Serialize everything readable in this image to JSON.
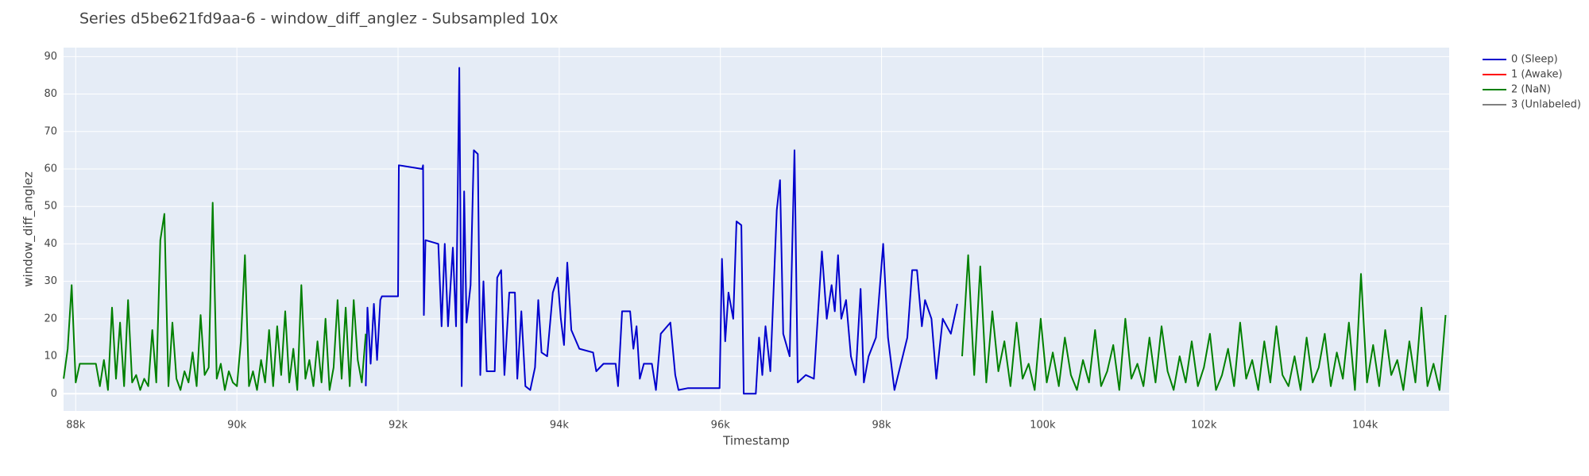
{
  "chart_data": {
    "type": "line",
    "title": "Series d5be621fd9aa-6 - window_diff_anglez - Subsampled 10x",
    "x_label": "Timestamp",
    "y_label": "window_diff_anglez",
    "xlim": [
      87849,
      105044
    ],
    "ylim": [
      -4.6,
      92.4
    ],
    "xticks": [
      {
        "value": 88000,
        "label": "88k"
      },
      {
        "value": 90000,
        "label": "90k"
      },
      {
        "value": 92000,
        "label": "92k"
      },
      {
        "value": 94000,
        "label": "94k"
      },
      {
        "value": 96000,
        "label": "96k"
      },
      {
        "value": 98000,
        "label": "98k"
      },
      {
        "value": 100000,
        "label": "100k"
      },
      {
        "value": 102000,
        "label": "102k"
      },
      {
        "value": 104000,
        "label": "104k"
      }
    ],
    "yticks": [
      0,
      10,
      20,
      30,
      40,
      50,
      60,
      70,
      80,
      90
    ],
    "grid": true,
    "legend": "right",
    "series": [
      {
        "name": "0 (Sleep)",
        "color": "#0000cd",
        "x": [
          91600,
          91620,
          91660,
          91700,
          91740,
          91780,
          91800,
          92000,
          92010,
          92300,
          92310,
          92320,
          92340,
          92500,
          92540,
          92580,
          92620,
          92680,
          92720,
          92760,
          92790,
          92820,
          92850,
          92900,
          92940,
          92990,
          93020,
          93060,
          93100,
          93200,
          93230,
          93280,
          93320,
          93380,
          93450,
          93480,
          93530,
          93580,
          93640,
          93700,
          93740,
          93780,
          93850,
          93920,
          93980,
          94020,
          94060,
          94100,
          94150,
          94250,
          94420,
          94460,
          94550,
          94700,
          94730,
          94780,
          94880,
          94920,
          94960,
          95000,
          95050,
          95150,
          95200,
          95260,
          95380,
          95440,
          95480,
          95600,
          95800,
          95990,
          96020,
          96060,
          96100,
          96160,
          96200,
          96260,
          96290,
          96440,
          96480,
          96520,
          96560,
          96620,
          96700,
          96740,
          96780,
          96860,
          96920,
          96960,
          97060,
          97160,
          97260,
          97320,
          97380,
          97420,
          97460,
          97500,
          97560,
          97620,
          97680,
          97740,
          97780,
          97840,
          97930,
          98020,
          98080,
          98160,
          98320,
          98380,
          98440,
          98500,
          98540,
          98620,
          98680,
          98760,
          98860,
          98940
        ],
        "values": [
          2,
          23,
          8,
          24,
          9,
          25,
          26,
          26,
          61,
          60,
          61,
          21,
          41,
          40,
          18,
          40,
          18,
          39,
          18,
          87,
          2,
          54,
          19,
          29,
          65,
          64,
          5,
          30,
          6,
          6,
          31,
          33,
          5,
          27,
          27,
          4,
          22,
          2,
          1,
          7,
          25,
          11,
          10,
          27,
          31,
          20,
          13,
          35,
          17,
          12,
          11,
          6,
          8,
          8,
          2,
          22,
          22,
          12,
          18,
          4,
          8,
          8,
          1,
          16,
          19,
          5,
          1,
          1.5,
          1.5,
          1.5,
          36,
          14,
          27,
          20,
          46,
          45,
          0,
          0,
          15,
          5,
          18,
          6,
          49,
          57,
          16,
          10,
          65,
          3,
          5,
          4,
          38,
          20,
          29,
          22,
          37,
          20,
          25,
          10,
          5,
          28,
          3,
          10,
          15,
          40,
          15,
          1,
          15,
          33,
          33,
          18,
          25,
          20,
          4,
          20,
          16,
          24
        ]
      },
      {
        "name": "1 (Awake)",
        "color": "#ff0000",
        "x": [],
        "values": []
      },
      {
        "name": "2 (NaN)",
        "color": "#008000",
        "x": [
          87850,
          87900,
          87950,
          88000,
          88050,
          88100,
          88150,
          88200,
          88250,
          88300,
          88350,
          88400,
          88450,
          88500,
          88550,
          88600,
          88650,
          88700,
          88750,
          88800,
          88850,
          88900,
          88950,
          89000,
          89050,
          89100,
          89150,
          89200,
          89250,
          89300,
          89350,
          89400,
          89450,
          89500,
          89550,
          89600,
          89650,
          89700,
          89750,
          89800,
          89850,
          89900,
          89950,
          90000,
          90050,
          90100,
          90150,
          90200,
          90250,
          90300,
          90350,
          90400,
          90450,
          90500,
          90550,
          90600,
          90650,
          90700,
          90750,
          90800,
          90850,
          90900,
          90950,
          91000,
          91050,
          91100,
          91150,
          91200,
          91250,
          91300,
          91350,
          91400,
          91450,
          91500,
          91550,
          91600,
          95300,
          99000,
          99075,
          99150,
          99225,
          99300,
          99375,
          99450,
          99525,
          99600,
          99675,
          99750,
          99825,
          99900,
          99975,
          100050,
          100125,
          100200,
          100275,
          100350,
          100425,
          100500,
          100575,
          100650,
          100725,
          100800,
          100875,
          100950,
          101025,
          101100,
          101175,
          101250,
          101325,
          101400,
          101475,
          101550,
          101625,
          101700,
          101775,
          101850,
          101925,
          102000,
          102075,
          102150,
          102225,
          102300,
          102375,
          102450,
          102525,
          102600,
          102675,
          102750,
          102825,
          102900,
          102975,
          103050,
          103125,
          103200,
          103275,
          103350,
          103425,
          103500,
          103575,
          103650,
          103725,
          103800,
          103875,
          103950,
          104025,
          104100,
          104175,
          104250,
          104325,
          104400,
          104475,
          104550,
          104625,
          104700,
          104775,
          104850,
          104925,
          105000
        ],
        "values": [
          4,
          12,
          29,
          3,
          8,
          8,
          8,
          8,
          8,
          2,
          9,
          1,
          23,
          4,
          19,
          2,
          25,
          3,
          5,
          1,
          4,
          2,
          17,
          3,
          41,
          48,
          2,
          19,
          4,
          1,
          6,
          3,
          11,
          2,
          21,
          5,
          7,
          51,
          4,
          8,
          1,
          6,
          3,
          2,
          14,
          37,
          2,
          6,
          1,
          9,
          3,
          17,
          2,
          18,
          5,
          22,
          3,
          12,
          1,
          29,
          4,
          9,
          2,
          14,
          3,
          20,
          1,
          7,
          25,
          4,
          23,
          2,
          25,
          9,
          3,
          16,
          null,
          10,
          37,
          5,
          34,
          3,
          22,
          6,
          14,
          2,
          19,
          4,
          8,
          1,
          20,
          3,
          11,
          2,
          15,
          5,
          1,
          9,
          3,
          17,
          2,
          6,
          13,
          1,
          20,
          4,
          8,
          2,
          15,
          3,
          18,
          6,
          1,
          10,
          3,
          14,
          2,
          7,
          16,
          1,
          5,
          12,
          2,
          19,
          4,
          9,
          1,
          14,
          3,
          18,
          5,
          2,
          10,
          1,
          15,
          3,
          7,
          16,
          2,
          11,
          4,
          19,
          1,
          32,
          3,
          13,
          2,
          17,
          5,
          9,
          1,
          14,
          3,
          23,
          2,
          8,
          1,
          21
        ]
      },
      {
        "name": "3 (Unlabeled)",
        "color": "#808080",
        "x": [],
        "values": []
      }
    ]
  }
}
